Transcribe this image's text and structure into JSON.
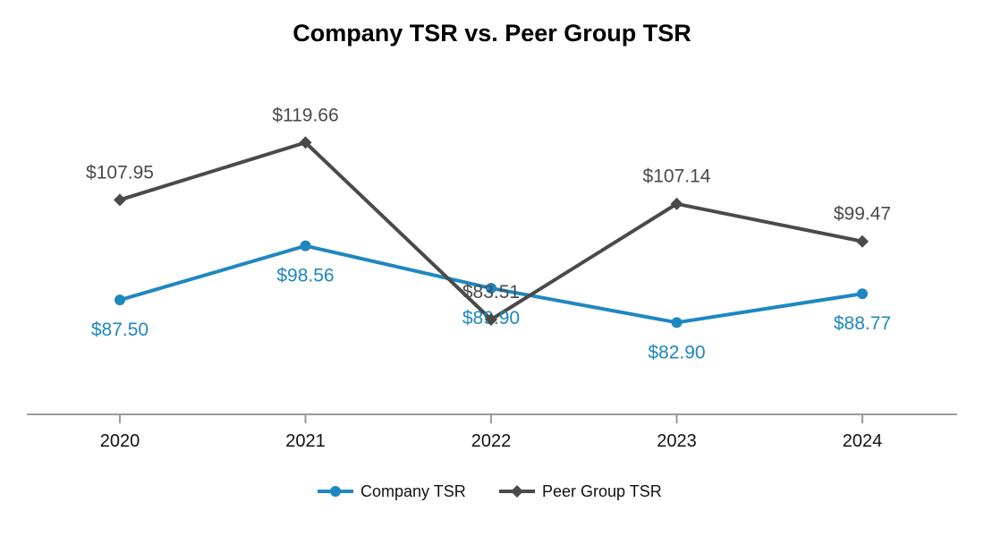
{
  "chart_data": {
    "type": "line",
    "title": "Company TSR vs. Peer Group TSR",
    "xlabel": "",
    "ylabel": "",
    "categories": [
      "2020",
      "2021",
      "2022",
      "2023",
      "2024"
    ],
    "ylim": [
      40,
      140
    ],
    "grid": false,
    "legend_position": "bottom-center",
    "series": [
      {
        "name": "Company TSR",
        "color": "#1f87c0",
        "marker": "circle",
        "values": [
          87.5,
          98.56,
          89.9,
          82.9,
          88.77
        ],
        "labels": [
          "$87.50",
          "$98.56",
          "$89.90",
          "$82.90",
          "$88.77"
        ],
        "label_position": "below"
      },
      {
        "name": "Peer Group TSR",
        "color": "#4a4a4a",
        "marker": "diamond",
        "values": [
          107.95,
          119.66,
          83.51,
          107.14,
          99.47
        ],
        "labels": [
          "$107.95",
          "$119.66",
          "$83.51",
          "$107.14",
          "$99.47"
        ],
        "label_position": "above"
      }
    ]
  }
}
